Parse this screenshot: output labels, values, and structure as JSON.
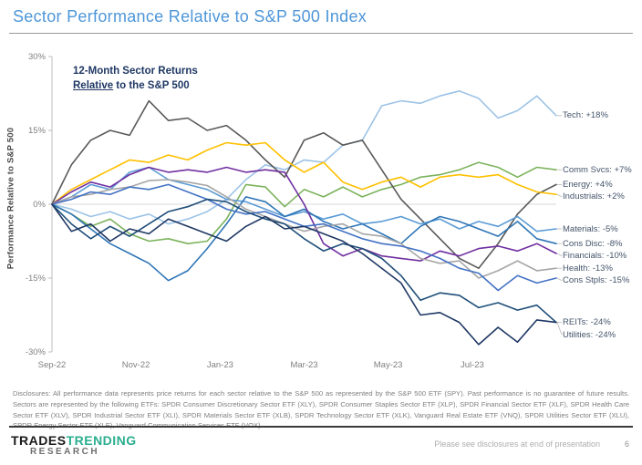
{
  "header": {
    "title": "Sector Performance Relative to S&P 500 Index"
  },
  "chart_data": {
    "type": "line",
    "annotation_line1": "12-Month Sector Returns",
    "annotation_line2_underlined": "Relative",
    "annotation_line2_rest": " to the S&P 500",
    "ylabel": "Performance Relative to S&P 500",
    "ylim": [
      -30,
      30
    ],
    "y_ticks": [
      {
        "label": "30%",
        "value": 30
      },
      {
        "label": "15%",
        "value": 15
      },
      {
        "label": "0%",
        "value": 0
      },
      {
        "label": "-15%",
        "value": -15
      },
      {
        "label": "-30%",
        "value": -30
      }
    ],
    "x_ticks": [
      {
        "label": "Sep-22",
        "t": 0
      },
      {
        "label": "Nov-22",
        "t": 4.33
      },
      {
        "label": "Jan-23",
        "t": 8.67
      },
      {
        "label": "Mar-23",
        "t": 13
      },
      {
        "label": "May-23",
        "t": 17.33
      },
      {
        "label": "Jul-23",
        "t": 21.67
      }
    ],
    "x_range": [
      0,
      26
    ],
    "grid": "zero-line-only",
    "legend_position": "right-at-line-ends",
    "series": [
      {
        "name": "tech",
        "label": "Tech: +18%",
        "final": 18,
        "color": "#9DC3E6",
        "values": [
          0,
          -1,
          -2.5,
          -1.5,
          -3,
          -2,
          -4,
          -3,
          -1.5,
          1,
          5,
          8,
          7,
          9,
          8.5,
          12,
          13,
          20,
          21,
          20.5,
          22,
          23,
          21.5,
          17.5,
          19,
          22,
          18
        ]
      },
      {
        "name": "comm-svcs",
        "label": "Comm Svcs: +7%",
        "final": 7,
        "color": "#7CB35C",
        "values": [
          0,
          -2,
          -4.5,
          -3,
          -6,
          -7.5,
          -7,
          -8,
          -7.5,
          -3,
          4,
          3.5,
          -0.5,
          3,
          1.5,
          3.5,
          1.5,
          3,
          4,
          5.5,
          6,
          7,
          8.5,
          7.5,
          5.5,
          7.5,
          7
        ]
      },
      {
        "name": "energy",
        "label": "Energy: +4%",
        "final": 4,
        "color": "#595959",
        "values": [
          0,
          8,
          13,
          15,
          14,
          21,
          17,
          17.5,
          15,
          16,
          13,
          9,
          5.5,
          13,
          14.5,
          12,
          13,
          7,
          1,
          -3,
          -7,
          -11,
          -13,
          -8,
          -2,
          2,
          4
        ]
      },
      {
        "name": "industrials",
        "label": "Industrials: +2%",
        "final": 2,
        "color": "#FFC000",
        "values": [
          0,
          3,
          5,
          7,
          9,
          8.5,
          10,
          9,
          11,
          12.5,
          12,
          12.5,
          9,
          6.5,
          8.5,
          4.5,
          3,
          4.5,
          5.5,
          3.5,
          5.5,
          6,
          5.5,
          6,
          4,
          2.5,
          2
        ]
      },
      {
        "name": "materials",
        "label": "Materials: -5%",
        "final": -5,
        "color": "#5B9BD5",
        "values": [
          0,
          1.5,
          4,
          3,
          6.5,
          7.5,
          5,
          4,
          3,
          1,
          0.5,
          -1,
          -2.5,
          -1.5,
          -3,
          -2,
          -4,
          -3.5,
          -2.5,
          -4,
          -3,
          -5,
          -3.5,
          -4.5,
          -2.5,
          -5.5,
          -5
        ]
      },
      {
        "name": "cons-disc",
        "label": "Cons Disc: -8%",
        "final": -8,
        "color": "#2E75B6",
        "values": [
          0,
          -2,
          -5,
          -8,
          -10,
          -12,
          -15.5,
          -13.5,
          -9,
          -4,
          1.5,
          0.5,
          -2.5,
          -1,
          -3.5,
          -5,
          -4,
          -6,
          -8,
          -4.5,
          -2.5,
          -3.5,
          -5,
          -6.5,
          -3.5,
          -7,
          -8
        ]
      },
      {
        "name": "financials",
        "label": "Financials: -10%",
        "final": -10,
        "color": "#7030A0",
        "values": [
          0,
          2.5,
          4.5,
          3.5,
          6,
          7.5,
          6.5,
          7,
          6.5,
          7.5,
          6.5,
          7,
          6.5,
          0,
          -8,
          -10.5,
          -9,
          -10.5,
          -11,
          -11.5,
          -9.5,
          -10.5,
          -9,
          -8.5,
          -9.5,
          -8,
          -10
        ]
      },
      {
        "name": "health",
        "label": "Health: -13%",
        "final": -13,
        "color": "#A6A6A6",
        "values": [
          0,
          1.5,
          2,
          3,
          3.5,
          4.8,
          5,
          4.5,
          3.8,
          1.5,
          -1,
          -2.5,
          -4,
          -5.5,
          -4.5,
          -4,
          -6,
          -6.5,
          -8,
          -11,
          -12,
          -11.5,
          -15,
          -13.5,
          -11.5,
          -13.5,
          -13
        ]
      },
      {
        "name": "cons-stpls",
        "label": "Cons Stpls: -15%",
        "final": -15,
        "color": "#4472C4",
        "values": [
          0,
          1,
          2.5,
          2,
          3.5,
          3,
          4,
          2.5,
          1,
          -1,
          -2,
          -1.5,
          -3,
          -4.5,
          -4,
          -5.5,
          -7,
          -8,
          -8.5,
          -9.5,
          -11,
          -13,
          -14,
          -17.5,
          -14.5,
          -16,
          -15
        ]
      },
      {
        "name": "reits",
        "label": "REITs: -24%",
        "final": -24,
        "color": "#1F4E79",
        "values": [
          0,
          -4,
          -7,
          -4.5,
          -6.5,
          -4,
          -1.5,
          -0.5,
          1,
          0.5,
          -1.5,
          -3,
          -4,
          -7,
          -9.5,
          -8,
          -9,
          -11,
          -14.5,
          -19.5,
          -18,
          -18.5,
          -21,
          -20,
          -21.5,
          -20.5,
          -24
        ]
      },
      {
        "name": "utilities",
        "label": "Utilities: -24%",
        "final": -24,
        "color": "#1F3864",
        "values": [
          0,
          -5.5,
          -4,
          -7.5,
          -5,
          -6,
          -3,
          -4.5,
          -6,
          -7.5,
          -4.5,
          -2.5,
          -5,
          -4.5,
          -6,
          -7.5,
          -10,
          -13,
          -16,
          -22.5,
          -22,
          -24,
          -28.5,
          -25,
          -28,
          -23.5,
          -24
        ]
      }
    ]
  },
  "disclosures": "Disclosures: All performance data represents price returns for each sector relative to the S&P 500 as represented by the S&P 500 ETF (SPY). Past performance is no guarantee of future results. Sectors are represented by the following ETFs: SPDR Consumer Discretionary Sector ETF (XLY), SPDR Consumer Staples Sector ETF (XLP), SPDR Financial Sector ETF (XLF), SPDR Health Care Sector ETF (XLV), SPDR Industrial Sector ETF (XLI), SPDR Materials Sector ETF (XLB), SPDR Technology Sector ETF (XLK), Vanguard Real Estate ETF (VNQ), SPDR Utilities Sector ETF (XLU), SPDR Energy Sector ETF (XLE), Vanguard Communication Services ETF (VOX).",
  "footer": {
    "logo_trades": "TRADES",
    "logo_trending": "TRENDING",
    "logo_research": "RESEARCH",
    "note": "Please see disclosures at end of presentation",
    "page_number": "6"
  }
}
